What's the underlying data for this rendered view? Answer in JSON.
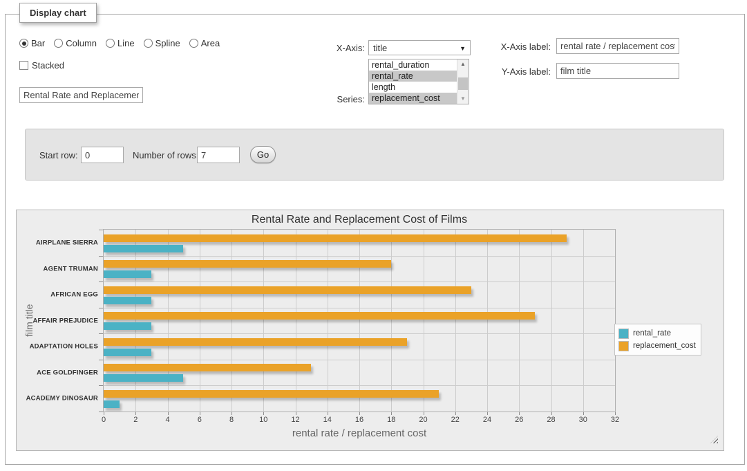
{
  "form": {
    "legend_title": "Display chart",
    "chart_types": {
      "options": [
        "Bar",
        "Column",
        "Line",
        "Spline",
        "Area"
      ],
      "selected": "Bar"
    },
    "stacked": {
      "label": "Stacked",
      "checked": false
    },
    "chart_title_input": {
      "value": "Rental Rate and Replacement Cost of Films"
    },
    "x_axis_select": {
      "label": "X-Axis:",
      "selected": "title"
    },
    "series_select": {
      "label": "Series:",
      "options": [
        {
          "label": "rental_duration",
          "selected": false
        },
        {
          "label": "rental_rate",
          "selected": true
        },
        {
          "label": "length",
          "selected": false
        },
        {
          "label": "replacement_cost",
          "selected": true
        }
      ]
    },
    "x_axis_label": {
      "label": "X-Axis label:",
      "value": "rental rate / replacement cost"
    },
    "y_axis_label": {
      "label": "Y-Axis label:",
      "value": "film title"
    },
    "row_controls": {
      "start_label": "Start row:",
      "start_value": "0",
      "count_label": "Number of rows:",
      "count_value": "7",
      "go_label": "Go"
    }
  },
  "chart_data": {
    "type": "bar",
    "orientation": "horizontal",
    "title": "Rental Rate and Replacement Cost of Films",
    "xlabel": "rental rate / replacement cost",
    "ylabel": "film title",
    "categories": [
      "AIRPLANE SIERRA",
      "AGENT TRUMAN",
      "AFRICAN EGG",
      "AFFAIR PREJUDICE",
      "ADAPTATION HOLES",
      "ACE GOLDFINGER",
      "ACADEMY DINOSAUR"
    ],
    "series": [
      {
        "name": "rental_rate",
        "color": "#4bb2c5",
        "values": [
          4.99,
          2.99,
          2.99,
          2.99,
          2.99,
          4.99,
          0.99
        ]
      },
      {
        "name": "replacement_cost",
        "color": "#EAA228",
        "values": [
          28.99,
          17.99,
          22.99,
          26.99,
          18.99,
          12.99,
          20.99
        ]
      }
    ],
    "xlim": [
      0,
      32
    ],
    "x_ticks": [
      0,
      2,
      4,
      6,
      8,
      10,
      12,
      14,
      16,
      18,
      20,
      22,
      24,
      26,
      28,
      30,
      32
    ],
    "grid": true,
    "legend_position": "right",
    "bar_draw_order_top_to_bottom": [
      "replacement_cost",
      "rental_rate"
    ]
  }
}
